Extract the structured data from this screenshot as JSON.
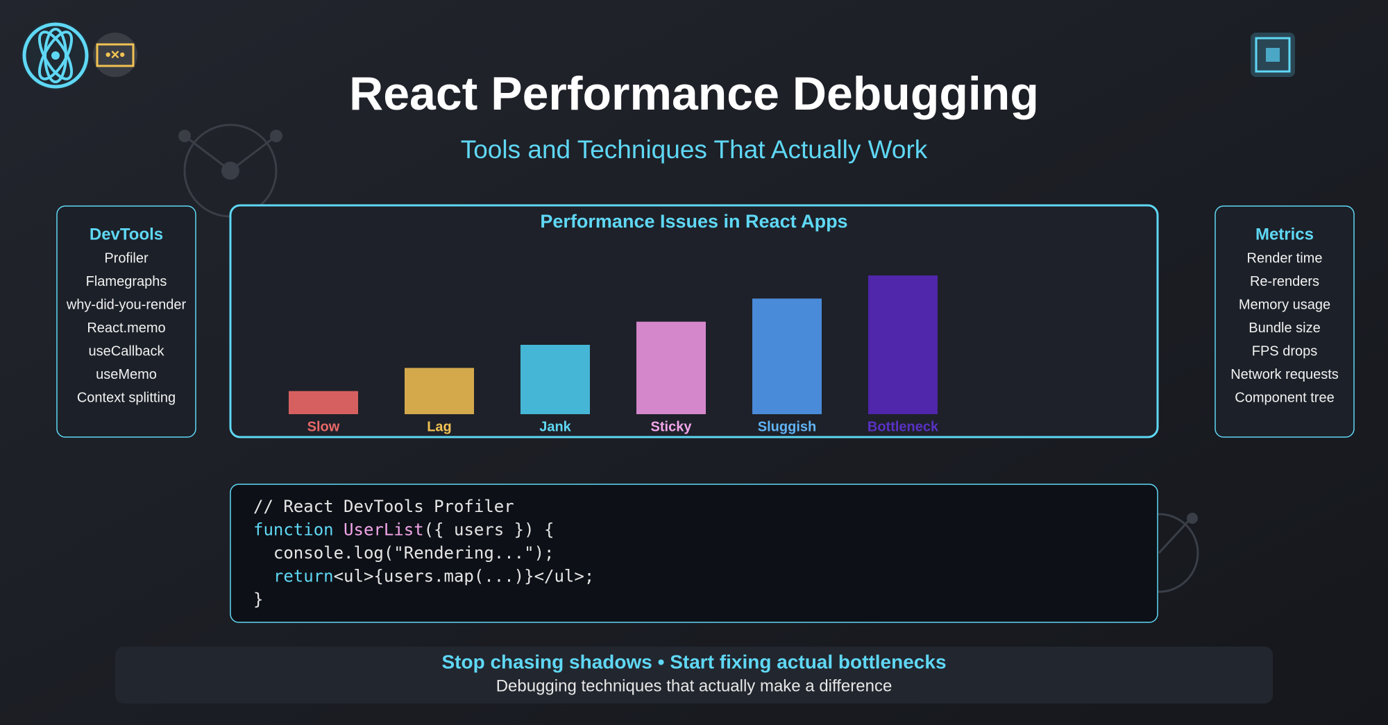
{
  "header": {
    "title": "React Performance Debugging",
    "subtitle": "Tools and Techniques That Actually Work"
  },
  "devtools": {
    "title": "DevTools",
    "items": [
      "Profiler",
      "Flamegraphs",
      "why-did-you-render",
      "React.memo",
      "useCallback",
      "useMemo",
      "Context splitting"
    ]
  },
  "metrics": {
    "title": "Metrics",
    "items": [
      "Render time",
      "Re-renders",
      "Memory usage",
      "Bundle size",
      "FPS drops",
      "Network requests",
      "Component tree"
    ]
  },
  "chart_data": {
    "type": "bar",
    "title": "Performance Issues in React Apps",
    "categories": [
      "Slow",
      "Lag",
      "Jank",
      "Sticky",
      "Sluggish",
      "Bottleneck"
    ],
    "values": [
      1,
      2,
      3,
      4,
      5,
      6
    ],
    "colors": [
      "#d66060",
      "#d4a94c",
      "#46b6d6",
      "#d487cb",
      "#4a8bd9",
      "#5026ab"
    ],
    "label_colors": [
      "#e86868",
      "#f2c253",
      "#5fd8f5",
      "#f2a6ea",
      "#62b4f7",
      "#5a31c4"
    ]
  },
  "code": {
    "lines": [
      [
        "// React DevTools Profiler"
      ],
      [
        "function",
        " UserList",
        "({ users }) {"
      ],
      [
        "  console.log(\"Rendering...\");"
      ],
      [
        "  return",
        "<ul>{users.map(...)}</ul>;"
      ],
      [
        "}"
      ]
    ]
  },
  "footer": {
    "headline": "Stop chasing shadows • Start fixing actual bottlenecks",
    "note": "Debugging techniques that actually make a difference"
  }
}
